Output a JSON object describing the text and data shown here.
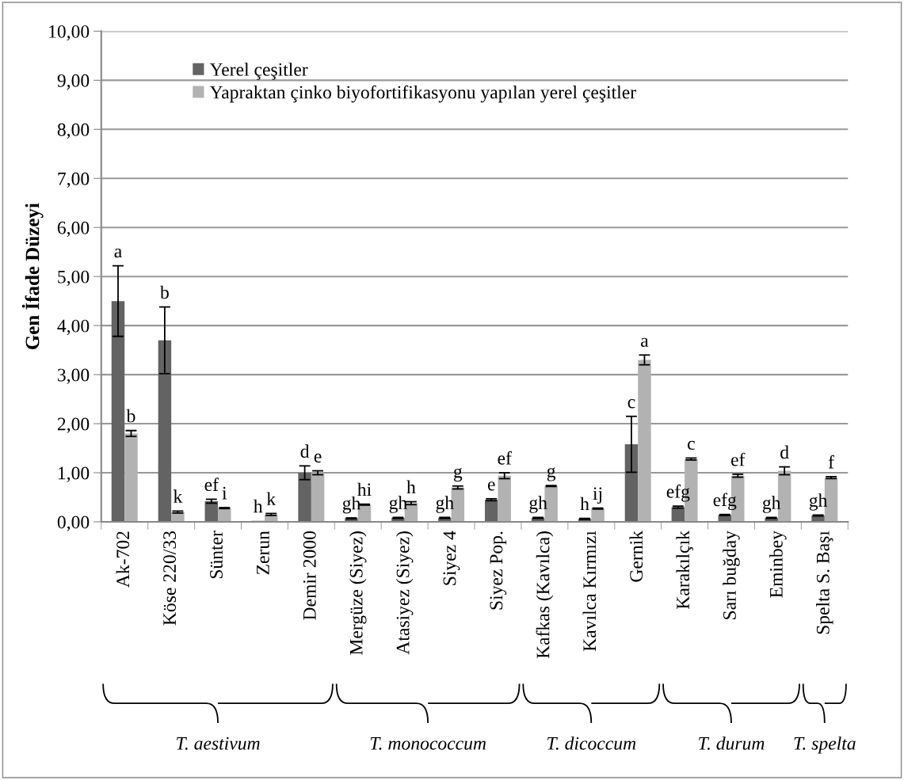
{
  "chart_data": {
    "type": "bar",
    "ylabel": "Gen İfade Düzeyi",
    "categories": [
      "Ak-702",
      "Köse 220/33",
      "Sünter",
      "Zerun",
      "Demir 2000",
      "Mergüze (Siyez)",
      "Atasiyez (Siyez)",
      "Siyez 4",
      "Siyez Pop.",
      "Kafkas (Kavılca)",
      "Kavılca Kırmızı",
      "Gernik",
      "Karakılçık",
      "Sarı buğday",
      "Eminbey",
      "Spelta S. Başı"
    ],
    "series": [
      {
        "name": "Yerel çeşitler",
        "color": "#636363",
        "values": [
          4.5,
          3.7,
          0.42,
          0.02,
          1.0,
          0.07,
          0.08,
          0.08,
          0.45,
          0.08,
          0.06,
          1.58,
          0.3,
          0.14,
          0.08,
          0.13
        ],
        "errors": [
          0.72,
          0.68,
          0.04,
          null,
          0.14,
          0.01,
          0.01,
          0.01,
          0.02,
          0.01,
          0.01,
          0.57,
          0.02,
          0.01,
          0.01,
          0.01
        ],
        "value_labels": [
          "a",
          "b",
          "ef",
          "h",
          "d",
          "gh",
          "gh",
          "gh",
          "e",
          "gh",
          "h",
          "c",
          "efg",
          "efg",
          "gh",
          "gh"
        ]
      },
      {
        "name": "Yapraktan çinko biyofortifikasyonu yapılan yerel çeşitler",
        "color": "#b2b2b2",
        "values": [
          1.8,
          0.2,
          0.28,
          0.15,
          1.0,
          0.35,
          0.38,
          0.7,
          0.94,
          0.73,
          0.27,
          3.3,
          1.28,
          0.94,
          1.04,
          0.9
        ],
        "errors": [
          0.06,
          0.02,
          0.01,
          0.02,
          0.04,
          0.01,
          0.03,
          0.03,
          0.06,
          0.01,
          0.01,
          0.1,
          0.02,
          0.03,
          0.08,
          0.02
        ],
        "value_labels": [
          "b",
          "k",
          "i",
          "k",
          "e",
          "hi",
          "h",
          "g",
          "ef",
          "g",
          "ij",
          "a",
          "c",
          "ef",
          "d",
          "f"
        ]
      }
    ],
    "ylim": [
      0,
      10
    ],
    "yticks": [
      {
        "value": 0,
        "label": "0,00"
      },
      {
        "value": 1,
        "label": "1,00"
      },
      {
        "value": 2,
        "label": "2,00"
      },
      {
        "value": 3,
        "label": "3,00"
      },
      {
        "value": 4,
        "label": "4,00"
      },
      {
        "value": 5,
        "label": "5,00"
      },
      {
        "value": 6,
        "label": "6,00"
      },
      {
        "value": 7,
        "label": "7,00"
      },
      {
        "value": 8,
        "label": "8,00"
      },
      {
        "value": 9,
        "label": "9,00"
      },
      {
        "value": 10,
        "label": "10,00"
      }
    ],
    "grid": "y",
    "legend": "top left",
    "annotations": [
      "T. aestivum",
      "T. monococcum",
      "T. dicoccum",
      "T. durum",
      "T. spelta"
    ]
  }
}
